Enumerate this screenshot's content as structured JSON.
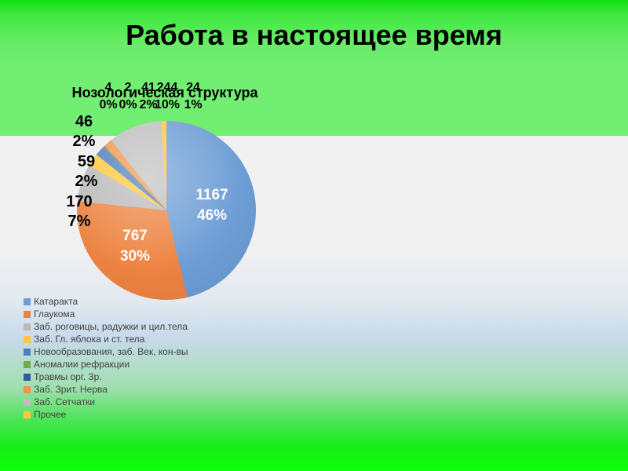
{
  "slide": {
    "title": "Работа в настоящее время"
  },
  "chart_data": {
    "type": "pie",
    "title": "Нозологическая структура",
    "legend_position": "bottom-left",
    "total": 2524,
    "categories": [
      "Катаракта",
      "Глаукома",
      "Заб. роговицы, радужки и цил.тела",
      "Заб. Гл. яблока и ст. тела",
      "Новообразования, заб. Век, кон-вы",
      "Аномалии рефракции",
      "Травмы орг. Зр.",
      "Заб. Зрит. Нерва",
      "Заб. Сетчатки",
      "Прочее"
    ],
    "values": [
      1167,
      767,
      170,
      59,
      46,
      4,
      2,
      41,
      244,
      24
    ],
    "value_labels": [
      "1167",
      "767",
      "170",
      "59",
      "46",
      "4",
      "2",
      "41",
      "244",
      "24"
    ],
    "percent_labels": [
      "46%",
      "30%",
      "7%",
      "2%",
      "2%",
      "0%",
      "0%",
      "2%",
      "10%",
      "1%"
    ],
    "colors": [
      "#6D9DD5",
      "#ED8240",
      "#B9B9B9",
      "#FFC83C",
      "#4D7EBF",
      "#70AD47",
      "#2E5B9A",
      "#F0954E",
      "#BFBFBF",
      "#FFC83C"
    ],
    "start_angle_deg": 0,
    "clockwise": true
  }
}
